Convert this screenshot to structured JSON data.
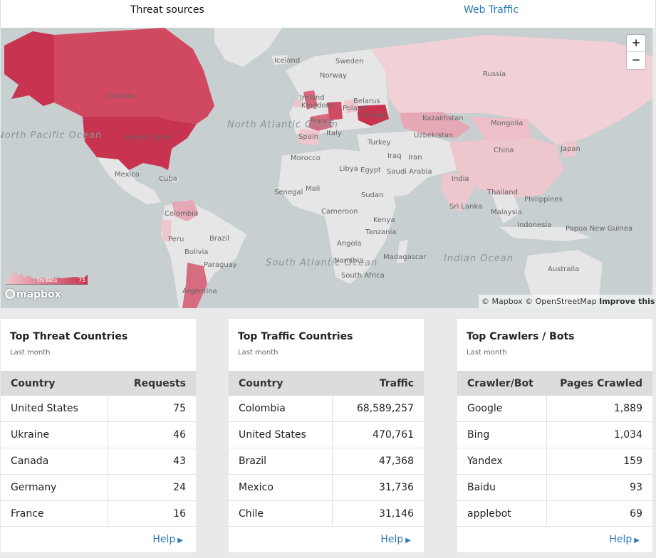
{
  "tabs": {
    "threat_sources": "Threat sources",
    "web_traffic": "Web Traffic"
  },
  "map": {
    "zoom_in": "+",
    "zoom_out": "−",
    "attribution_mapbox": "© Mapbox",
    "attribution_osm": "© OpenStreetMap",
    "improve": "Improve this map",
    "logo": "mapbox",
    "legend_label": "threats",
    "legend_max": "75",
    "labels": {
      "iceland": "Iceland",
      "norway": "Norway",
      "sweden": "Sweden",
      "russia": "Russia",
      "canada": "Canada",
      "kazakhstan": "Kazakhstan",
      "mongolia": "Mongolia",
      "china": "China",
      "united_states": "United States",
      "north_atlantic": "North Atlantic Ocean",
      "north_pacific": "North Pacific Ocean",
      "mexico": "Mexico",
      "cuba": "Cuba",
      "colombia": "Colombia",
      "peru": "Peru",
      "brazil": "Brazil",
      "bolivia": "Bolivia",
      "paraguay": "Paraguay",
      "argentina": "Argentina",
      "south_atlantic": "South Atlantic Ocean",
      "indian": "Indian Ocean",
      "spain": "Spain",
      "france": "France",
      "italy": "Italy",
      "turkey": "Turkey",
      "ukraine": "Ukraine",
      "belarus": "Belarus",
      "poland": "Poland",
      "uzbekistan": "Uzbekistan",
      "morocco": "Morocco",
      "libya": "Libya",
      "egypt": "Egypt",
      "iraq": "Iraq",
      "iran": "Iran",
      "saudi": "Saudi Arabia",
      "mali": "Mali",
      "senegal": "Senegal",
      "sudan": "Sudan",
      "kenya": "Kenya",
      "tanzania": "Tanzania",
      "cameroon": "Cameroon",
      "angola": "Angola",
      "namibia": "Namibia",
      "south_africa": "South Africa",
      "madagascar": "Madagascar",
      "india": "India",
      "sri_lanka": "Sri Lanka",
      "thailand": "Thailand",
      "philippines": "Philippines",
      "malaysia": "Malaysia",
      "indonesia": "Indonesia",
      "japan": "Japan",
      "png": "Papua New Guinea",
      "australia": "Australia",
      "ireland": "Ireland",
      "kingdom": "Kingdom"
    }
  },
  "threats": {
    "title": "Top Threat Countries",
    "subtitle": "Last month",
    "col1": "Country",
    "col2": "Requests",
    "rows": [
      {
        "name": "United States",
        "value": "75"
      },
      {
        "name": "Ukraine",
        "value": "46"
      },
      {
        "name": "Canada",
        "value": "43"
      },
      {
        "name": "Germany",
        "value": "24"
      },
      {
        "name": "France",
        "value": "16"
      }
    ],
    "help": "Help"
  },
  "traffic": {
    "title": "Top Traffic Countries",
    "subtitle": "Last month",
    "col1": "Country",
    "col2": "Traffic",
    "rows": [
      {
        "name": "Colombia",
        "value": "68,589,257"
      },
      {
        "name": "United States",
        "value": "470,761"
      },
      {
        "name": "Brazil",
        "value": "47,368"
      },
      {
        "name": "Mexico",
        "value": "31,736"
      },
      {
        "name": "Chile",
        "value": "31,146"
      }
    ],
    "help": "Help"
  },
  "crawlers": {
    "title": "Top Crawlers / Bots",
    "subtitle": "Last month",
    "col1": "Crawler/Bot",
    "col2": "Pages Crawled",
    "rows": [
      {
        "name": "Google",
        "value": "1,889"
      },
      {
        "name": "Bing",
        "value": "1,034"
      },
      {
        "name": "Yandex",
        "value": "159"
      },
      {
        "name": "Baidu",
        "value": "93"
      },
      {
        "name": "applebot",
        "value": "69"
      }
    ],
    "help": "Help"
  },
  "colors": {
    "accent": "#2a79b5",
    "threat_high": "#c8334f",
    "threat_mid": "#d76b80",
    "threat_low": "#eec6ce"
  }
}
